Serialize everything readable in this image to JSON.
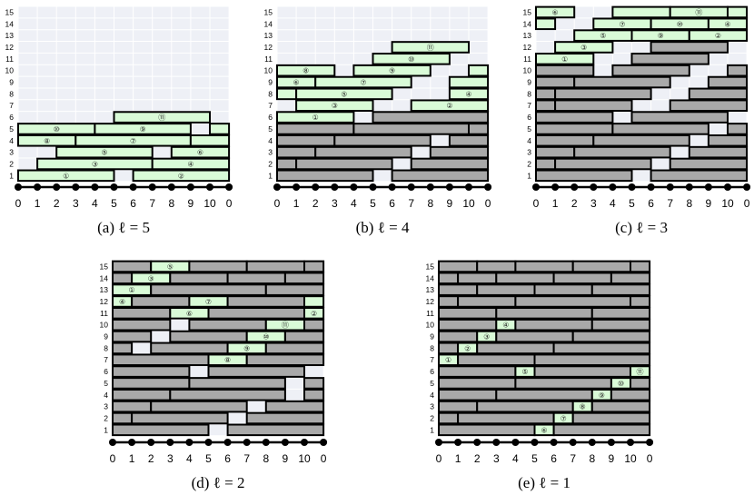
{
  "axis": {
    "labels": [
      "0",
      "1",
      "2",
      "3",
      "4",
      "5",
      "6",
      "7",
      "8",
      "9",
      "10",
      "0"
    ]
  },
  "rows": [
    "15",
    "14",
    "13",
    "12",
    "11",
    "10",
    "9",
    "8",
    "7",
    "6",
    "5",
    "4",
    "3",
    "2",
    "1"
  ],
  "circled": [
    "",
    "①",
    "②",
    "③",
    "④",
    "⑤",
    "⑥",
    "⑦",
    "⑧",
    "⑨",
    "⑩",
    "⑪"
  ],
  "colors": {
    "highlight": "#d9fbd7",
    "done": "#a9a9a9",
    "bg": "#eef0f6",
    "stroke": "#000000"
  },
  "panels": [
    {
      "caption": "(a)  ℓ = 5",
      "bars": [
        [
          1,
          0,
          5,
          1,
          "H"
        ],
        [
          1,
          6,
          11,
          2,
          "H"
        ],
        [
          2,
          1,
          7,
          3,
          "H"
        ],
        [
          2,
          7,
          11,
          4,
          "H"
        ],
        [
          3,
          2,
          7,
          5,
          "H"
        ],
        [
          3,
          8,
          11,
          6,
          "H"
        ],
        [
          4,
          0,
          3,
          8,
          "H"
        ],
        [
          4,
          3,
          9,
          7,
          "H"
        ],
        [
          4,
          9,
          11,
          0,
          "H"
        ],
        [
          5,
          0,
          4,
          10,
          "H"
        ],
        [
          5,
          4,
          9,
          9,
          "H"
        ],
        [
          5,
          10,
          11,
          0,
          "H"
        ],
        [
          6,
          5,
          10,
          11,
          "H"
        ]
      ]
    },
    {
      "caption": "(b)  ℓ = 4",
      "bars": [
        [
          1,
          0,
          5,
          0,
          "G"
        ],
        [
          1,
          6,
          11,
          0,
          "G"
        ],
        [
          2,
          0,
          1,
          0,
          "G"
        ],
        [
          2,
          1,
          6,
          0,
          "G"
        ],
        [
          2,
          7,
          11,
          0,
          "G"
        ],
        [
          3,
          0,
          2,
          0,
          "G"
        ],
        [
          3,
          2,
          7,
          0,
          "G"
        ],
        [
          3,
          8,
          11,
          0,
          "G"
        ],
        [
          4,
          0,
          3,
          0,
          "G"
        ],
        [
          4,
          3,
          8,
          0,
          "G"
        ],
        [
          4,
          9,
          11,
          0,
          "G"
        ],
        [
          5,
          0,
          4,
          0,
          "G"
        ],
        [
          5,
          4,
          10,
          0,
          "G"
        ],
        [
          5,
          10,
          11,
          0,
          "G"
        ],
        [
          6,
          0,
          4,
          1,
          "H"
        ],
        [
          6,
          5,
          11,
          0,
          "G"
        ],
        [
          7,
          1,
          5,
          3,
          "H"
        ],
        [
          7,
          7,
          11,
          2,
          "H"
        ],
        [
          8,
          0,
          1,
          0,
          "H"
        ],
        [
          8,
          1,
          6,
          5,
          "H"
        ],
        [
          8,
          9,
          11,
          4,
          "H"
        ],
        [
          9,
          0,
          2,
          6,
          "H"
        ],
        [
          9,
          2,
          7,
          7,
          "H"
        ],
        [
          9,
          9,
          11,
          0,
          "H"
        ],
        [
          10,
          0,
          3,
          8,
          "H"
        ],
        [
          10,
          4,
          8,
          9,
          "H"
        ],
        [
          10,
          10,
          11,
          0,
          "H"
        ],
        [
          11,
          5,
          9,
          10,
          "H"
        ],
        [
          12,
          6,
          10,
          11,
          "H"
        ]
      ]
    },
    {
      "caption": "(c)  ℓ = 3",
      "bars": [
        [
          1,
          0,
          5,
          0,
          "G"
        ],
        [
          1,
          6,
          11,
          0,
          "G"
        ],
        [
          2,
          0,
          1,
          0,
          "G"
        ],
        [
          2,
          1,
          6,
          0,
          "G"
        ],
        [
          2,
          7,
          11,
          0,
          "G"
        ],
        [
          3,
          0,
          2,
          0,
          "G"
        ],
        [
          3,
          2,
          7,
          0,
          "G"
        ],
        [
          3,
          8,
          11,
          0,
          "G"
        ],
        [
          4,
          0,
          3,
          0,
          "G"
        ],
        [
          4,
          3,
          8,
          0,
          "G"
        ],
        [
          4,
          9,
          11,
          0,
          "G"
        ],
        [
          5,
          0,
          4,
          0,
          "G"
        ],
        [
          5,
          4,
          9,
          0,
          "G"
        ],
        [
          5,
          10,
          11,
          0,
          "G"
        ],
        [
          6,
          0,
          4,
          0,
          "G"
        ],
        [
          6,
          5,
          10,
          0,
          "G"
        ],
        [
          7,
          0,
          1,
          0,
          "G"
        ],
        [
          7,
          1,
          5,
          0,
          "G"
        ],
        [
          7,
          7,
          11,
          0,
          "G"
        ],
        [
          8,
          0,
          1,
          0,
          "G"
        ],
        [
          8,
          1,
          6,
          0,
          "G"
        ],
        [
          8,
          8,
          11,
          0,
          "G"
        ],
        [
          9,
          0,
          2,
          0,
          "G"
        ],
        [
          9,
          2,
          7,
          0,
          "G"
        ],
        [
          9,
          9,
          11,
          0,
          "G"
        ],
        [
          10,
          0,
          3,
          0,
          "G"
        ],
        [
          10,
          4,
          8,
          0,
          "G"
        ],
        [
          10,
          10,
          11,
          0,
          "G"
        ],
        [
          11,
          0,
          3,
          1,
          "H"
        ],
        [
          11,
          5,
          9,
          0,
          "G"
        ],
        [
          12,
          1,
          4,
          3,
          "H"
        ],
        [
          12,
          6,
          10,
          0,
          "G"
        ],
        [
          13,
          2,
          5,
          5,
          "H"
        ],
        [
          13,
          5,
          8,
          9,
          "H"
        ],
        [
          13,
          8,
          11,
          2,
          "H"
        ],
        [
          14,
          0,
          1,
          0,
          "H"
        ],
        [
          14,
          3,
          6,
          7,
          "H"
        ],
        [
          14,
          6,
          9,
          10,
          "H"
        ],
        [
          14,
          9,
          11,
          4,
          "H"
        ],
        [
          15,
          0,
          2,
          6,
          "H"
        ],
        [
          15,
          4,
          7,
          0,
          "H"
        ],
        [
          15,
          7,
          10,
          11,
          "H"
        ],
        [
          15,
          10,
          11,
          0,
          "H"
        ]
      ]
    },
    {
      "caption": "(d)  ℓ = 2",
      "bars": [
        [
          1,
          0,
          5,
          0,
          "G"
        ],
        [
          1,
          6,
          11,
          0,
          "G"
        ],
        [
          2,
          0,
          1,
          0,
          "G"
        ],
        [
          2,
          1,
          6,
          0,
          "G"
        ],
        [
          2,
          7,
          11,
          0,
          "G"
        ],
        [
          3,
          0,
          2,
          0,
          "G"
        ],
        [
          3,
          2,
          7,
          0,
          "G"
        ],
        [
          3,
          8,
          11,
          0,
          "G"
        ],
        [
          4,
          0,
          3,
          0,
          "G"
        ],
        [
          4,
          3,
          9,
          0,
          "G"
        ],
        [
          4,
          10,
          11,
          0,
          "G"
        ],
        [
          5,
          0,
          4,
          0,
          "G"
        ],
        [
          5,
          4,
          9,
          0,
          "G"
        ],
        [
          5,
          10,
          11,
          0,
          "G"
        ],
        [
          6,
          0,
          4,
          0,
          "G"
        ],
        [
          6,
          5,
          10,
          0,
          "G"
        ],
        [
          7,
          0,
          5,
          0,
          "G"
        ],
        [
          7,
          5,
          7,
          8,
          "H"
        ],
        [
          7,
          7,
          11,
          0,
          "G"
        ],
        [
          8,
          0,
          1,
          0,
          "G"
        ],
        [
          8,
          2,
          6,
          0,
          "G"
        ],
        [
          8,
          6,
          8,
          9,
          "H"
        ],
        [
          8,
          8,
          11,
          0,
          "G"
        ],
        [
          9,
          0,
          2,
          0,
          "G"
        ],
        [
          9,
          3,
          7,
          0,
          "G"
        ],
        [
          9,
          7,
          9,
          10,
          "H"
        ],
        [
          9,
          9,
          11,
          0,
          "G"
        ],
        [
          10,
          0,
          3,
          0,
          "G"
        ],
        [
          10,
          4,
          8,
          0,
          "G"
        ],
        [
          10,
          8,
          10,
          11,
          "H"
        ],
        [
          10,
          10,
          11,
          0,
          "G"
        ],
        [
          11,
          0,
          3,
          0,
          "G"
        ],
        [
          11,
          3,
          5,
          6,
          "H"
        ],
        [
          11,
          5,
          10,
          0,
          "G"
        ],
        [
          11,
          10,
          11,
          2,
          "H"
        ],
        [
          12,
          0,
          1,
          4,
          "H"
        ],
        [
          12,
          1,
          4,
          0,
          "G"
        ],
        [
          12,
          4,
          6,
          7,
          "H"
        ],
        [
          12,
          6,
          10,
          0,
          "G"
        ],
        [
          12,
          10,
          11,
          0,
          "H"
        ],
        [
          13,
          0,
          2,
          1,
          "H"
        ],
        [
          13,
          2,
          8,
          0,
          "G"
        ],
        [
          13,
          8,
          11,
          0,
          "G"
        ],
        [
          14,
          0,
          1,
          0,
          "G"
        ],
        [
          14,
          1,
          3,
          3,
          "H"
        ],
        [
          14,
          3,
          6,
          0,
          "G"
        ],
        [
          14,
          6,
          9,
          0,
          "G"
        ],
        [
          14,
          9,
          11,
          0,
          "G"
        ],
        [
          15,
          0,
          2,
          0,
          "G"
        ],
        [
          15,
          2,
          4,
          5,
          "H"
        ],
        [
          15,
          4,
          7,
          0,
          "G"
        ],
        [
          15,
          7,
          10,
          0,
          "G"
        ],
        [
          15,
          10,
          11,
          0,
          "G"
        ]
      ]
    },
    {
      "caption": "(e)  ℓ = 1",
      "bars": [
        [
          1,
          0,
          5,
          0,
          "G"
        ],
        [
          1,
          5,
          6,
          6,
          "H"
        ],
        [
          1,
          6,
          11,
          0,
          "G"
        ],
        [
          2,
          0,
          1,
          0,
          "G"
        ],
        [
          2,
          1,
          6,
          0,
          "G"
        ],
        [
          2,
          6,
          7,
          7,
          "H"
        ],
        [
          2,
          7,
          11,
          0,
          "G"
        ],
        [
          3,
          0,
          2,
          0,
          "G"
        ],
        [
          3,
          2,
          7,
          0,
          "G"
        ],
        [
          3,
          7,
          8,
          8,
          "H"
        ],
        [
          3,
          8,
          11,
          0,
          "G"
        ],
        [
          4,
          0,
          3,
          0,
          "G"
        ],
        [
          4,
          3,
          8,
          0,
          "G"
        ],
        [
          4,
          8,
          9,
          9,
          "H"
        ],
        [
          4,
          9,
          11,
          0,
          "G"
        ],
        [
          5,
          0,
          4,
          0,
          "G"
        ],
        [
          5,
          4,
          9,
          0,
          "G"
        ],
        [
          5,
          9,
          10,
          10,
          "H"
        ],
        [
          5,
          10,
          11,
          0,
          "G"
        ],
        [
          6,
          0,
          4,
          0,
          "G"
        ],
        [
          6,
          4,
          5,
          5,
          "H"
        ],
        [
          6,
          5,
          10,
          0,
          "G"
        ],
        [
          6,
          10,
          11,
          11,
          "H"
        ],
        [
          7,
          0,
          1,
          1,
          "H"
        ],
        [
          7,
          1,
          5,
          0,
          "G"
        ],
        [
          7,
          5,
          11,
          0,
          "G"
        ],
        [
          8,
          0,
          1,
          0,
          "G"
        ],
        [
          8,
          1,
          2,
          2,
          "H"
        ],
        [
          8,
          2,
          6,
          0,
          "G"
        ],
        [
          8,
          6,
          11,
          0,
          "G"
        ],
        [
          9,
          0,
          2,
          0,
          "G"
        ],
        [
          9,
          2,
          3,
          3,
          "H"
        ],
        [
          9,
          3,
          7,
          0,
          "G"
        ],
        [
          9,
          7,
          11,
          0,
          "G"
        ],
        [
          10,
          0,
          3,
          0,
          "G"
        ],
        [
          10,
          3,
          4,
          4,
          "H"
        ],
        [
          10,
          4,
          8,
          0,
          "G"
        ],
        [
          10,
          8,
          11,
          0,
          "G"
        ],
        [
          11,
          0,
          3,
          0,
          "G"
        ],
        [
          11,
          3,
          8,
          0,
          "G"
        ],
        [
          11,
          8,
          11,
          0,
          "G"
        ],
        [
          12,
          0,
          1,
          0,
          "G"
        ],
        [
          12,
          1,
          4,
          0,
          "G"
        ],
        [
          12,
          4,
          10,
          0,
          "G"
        ],
        [
          12,
          10,
          11,
          0,
          "G"
        ],
        [
          13,
          0,
          2,
          0,
          "G"
        ],
        [
          13,
          2,
          5,
          0,
          "G"
        ],
        [
          13,
          5,
          8,
          0,
          "G"
        ],
        [
          13,
          8,
          11,
          0,
          "G"
        ],
        [
          14,
          0,
          1,
          0,
          "G"
        ],
        [
          14,
          1,
          3,
          0,
          "G"
        ],
        [
          14,
          3,
          6,
          0,
          "G"
        ],
        [
          14,
          6,
          9,
          0,
          "G"
        ],
        [
          14,
          9,
          11,
          0,
          "G"
        ],
        [
          15,
          0,
          2,
          0,
          "G"
        ],
        [
          15,
          2,
          4,
          0,
          "G"
        ],
        [
          15,
          4,
          7,
          0,
          "G"
        ],
        [
          15,
          7,
          10,
          0,
          "G"
        ],
        [
          15,
          10,
          11,
          0,
          "G"
        ]
      ]
    }
  ]
}
